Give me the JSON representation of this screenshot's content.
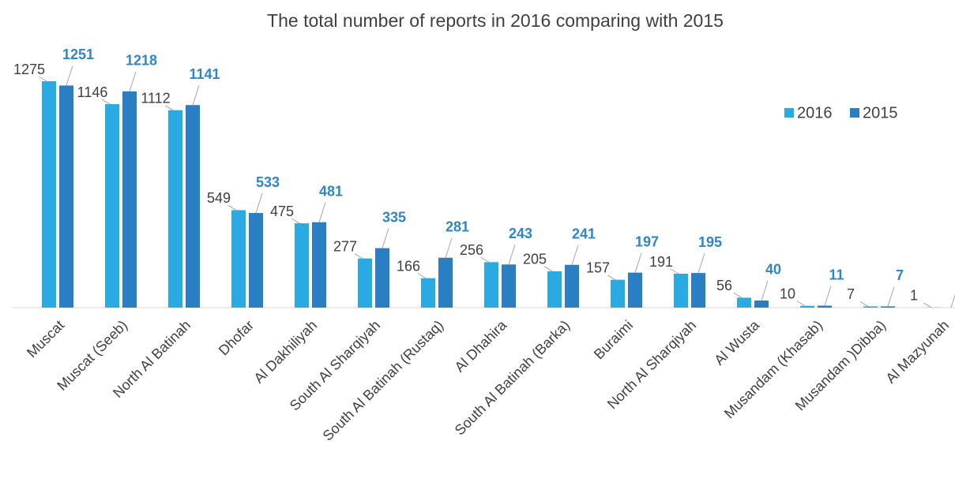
{
  "chart_data": {
    "type": "bar",
    "title": "The total number of reports in 2016 comparing with 2015",
    "categories": [
      "Muscat",
      "Muscat (Seeb)",
      "North Al Batinah",
      "Dhofar",
      "Al Dakhiliyah",
      "South Al Sharqiyah",
      "South Al Batinah (Rustaq)",
      "Al Dhahira",
      "South Al Batinah (Barka)",
      "Buraimi",
      "North Al Sharqiyah",
      "Al Wusta",
      "Musandam (Khasab)",
      "Musandam )Dibba)",
      "Al Mazyunah"
    ],
    "series": [
      {
        "name": "2016",
        "color": "#29abe2",
        "values": [
          1275,
          1146,
          1112,
          549,
          475,
          277,
          166,
          256,
          205,
          157,
          191,
          56,
          10,
          7,
          1
        ]
      },
      {
        "name": "2015",
        "color": "#2a7fc4",
        "values": [
          1251,
          1218,
          1141,
          533,
          481,
          335,
          281,
          243,
          241,
          197,
          195,
          40,
          11,
          7,
          0
        ]
      }
    ],
    "legend": "right"
  }
}
